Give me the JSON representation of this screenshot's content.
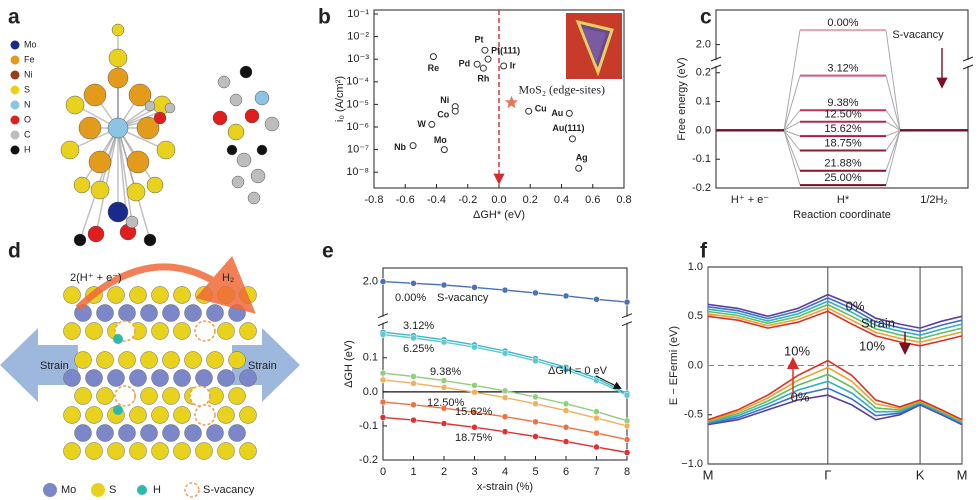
{
  "panel_labels": [
    "a",
    "b",
    "c",
    "d",
    "e",
    "f"
  ],
  "panel_a": {
    "legend": [
      {
        "label": "Mo",
        "color": "#1a2a8a"
      },
      {
        "label": "Fe",
        "color": "#e39b1c"
      },
      {
        "label": "Ni",
        "color": "#9a3b1a"
      },
      {
        "label": "S",
        "color": "#e8d21e"
      },
      {
        "label": "N",
        "color": "#8cc4e4"
      },
      {
        "label": "O",
        "color": "#e01e1e"
      },
      {
        "label": "C",
        "color": "#bdbdbd"
      },
      {
        "label": "H",
        "color": "#111111"
      }
    ]
  },
  "panel_d": {
    "labels": [
      "2(H⁺ + e⁻)",
      "H₂",
      "Strain",
      "Strain"
    ],
    "legend": [
      {
        "label": "Mo",
        "color": "#7b87c9"
      },
      {
        "label": "S",
        "color": "#e8d21e"
      },
      {
        "label": "H",
        "color": "#2fb7b0"
      },
      {
        "label": "S-vacancy",
        "color": "#f0a050"
      }
    ]
  },
  "chart_data": [
    {
      "type": "scatter",
      "ylabel": "i₀ (A/cm²)",
      "xlabel": "ΔGH* (eV)",
      "xlim": [
        -0.8,
        0.8
      ],
      "xticks": [
        -0.8,
        -0.6,
        -0.4,
        -0.2,
        {
          "value": 0,
          "label": "0.0"
        },
        0.2,
        0.4,
        0.6,
        0.8
      ],
      "ylim": [
        2e-09,
        0.15
      ],
      "yscale": "log",
      "yticks": [
        {
          "value": 1e-08,
          "label": "10⁻⁸"
        },
        {
          "value": 1e-07,
          "label": "10⁻⁷"
        },
        {
          "value": 1e-06,
          "label": "10⁻⁶"
        },
        {
          "value": 1e-05,
          "label": "10⁻⁵"
        },
        {
          "value": 0.0001,
          "label": "10⁻⁴"
        },
        {
          "value": 0.001,
          "label": "10⁻³"
        },
        {
          "value": 0.01,
          "label": "10⁻²"
        },
        {
          "value": 0.1,
          "label": "10⁻¹"
        }
      ],
      "point_labels": [
        "Pt",
        "Pt(111)",
        "Pd",
        "Re",
        "Rh",
        "Ir",
        "Ni",
        "Co",
        "W",
        "Mo",
        "Nb",
        "Cu",
        "Au",
        "Au(111)",
        "Ag"
      ],
      "x": [
        -0.09,
        -0.07,
        -0.14,
        -0.42,
        -0.1,
        0.03,
        -0.28,
        -0.28,
        -0.43,
        -0.35,
        -0.55,
        0.19,
        0.45,
        0.47,
        0.51
      ],
      "values": [
        0.0025,
        0.001,
        0.0006,
        0.0013,
        0.0004,
        0.0005,
        8e-06,
        5e-06,
        1.3e-06,
        1e-07,
        1.5e-07,
        5e-06,
        4e-06,
        3e-07,
        1.5e-08
      ],
      "color": "#333333",
      "highlight": {
        "label": "MoS₂ (edge-sites)",
        "x": 0.08,
        "value": 1.2e-05,
        "color": "#e5775c",
        "label_color": "#2a3a9a"
      },
      "vline": {
        "value": 0,
        "color": "#d62b2b"
      }
    },
    {
      "type": "levels",
      "ylabel": "Free energy (eV)",
      "xlabel": "Reaction coordinate",
      "categories": [
        "H⁺ + e⁻",
        "H*",
        "1/2H₂"
      ],
      "ylim": [
        -0.2,
        2.12
      ],
      "ybreak": [
        0.22,
        1.95
      ],
      "yticks": [
        -0.2,
        -0.1,
        {
          "value": 0,
          "label": "0.0"
        },
        0.1,
        0.2,
        {
          "value": 2,
          "label": "2.0"
        }
      ],
      "annotation": "S-vacancy",
      "series": [
        {
          "name": "0.00%",
          "color": "#e7a1b3",
          "values": [
            0,
            2.05,
            0
          ]
        },
        {
          "name": "3.12%",
          "color": "#d9547a",
          "values": [
            0,
            0.19,
            0
          ]
        },
        {
          "name": "9.38%",
          "color": "#c8325d",
          "values": [
            0,
            0.07,
            0
          ]
        },
        {
          "name": "12.50%",
          "color": "#b82849",
          "values": [
            0,
            0.03,
            0
          ]
        },
        {
          "name": "15.62%",
          "color": "#a8203d",
          "values": [
            0,
            -0.02,
            0
          ]
        },
        {
          "name": "18.75%",
          "color": "#951a33",
          "values": [
            0,
            -0.07,
            0
          ]
        },
        {
          "name": "21.88%",
          "color": "#82152a",
          "values": [
            0,
            -0.14,
            0
          ]
        },
        {
          "name": "25.00%",
          "color": "#6e1022",
          "values": [
            0,
            -0.19,
            0
          ]
        }
      ]
    },
    {
      "type": "line",
      "ylabel": "ΔGH (eV)",
      "xlabel": "x-strain (%)",
      "x": [
        0,
        1,
        2,
        3,
        4,
        5,
        6,
        7,
        8
      ],
      "xlim": [
        0,
        8
      ],
      "xticks": [
        0,
        1,
        2,
        3,
        4,
        5,
        6,
        7,
        8
      ],
      "ylim": [
        -0.2,
        2.04
      ],
      "ybreak": [
        0.2,
        1.9
      ],
      "yticks": [
        -0.2,
        -0.1,
        {
          "value": 0,
          "label": "0.0"
        },
        0.1,
        {
          "value": 2,
          "label": "2.0"
        }
      ],
      "zero_line": true,
      "markers": true,
      "annotations": [
        "S-vacancy",
        "ΔGH = 0 eV"
      ],
      "series": [
        {
          "name": "0.00%",
          "color": "#4a72b8",
          "values": [
            2.0,
            1.995,
            1.99,
            1.983,
            1.975,
            1.967,
            1.958,
            1.948,
            1.94
          ]
        },
        {
          "name": "3.12%",
          "color": "#3ab8c8",
          "values": [
            0.175,
            0.165,
            0.153,
            0.138,
            0.12,
            0.098,
            0.072,
            0.04,
            -0.005
          ]
        },
        {
          "name": "6.25%",
          "color": "#5fc9d2",
          "values": [
            0.168,
            0.158,
            0.146,
            0.131,
            0.113,
            0.091,
            0.065,
            0.033,
            -0.01
          ]
        },
        {
          "name": "9.38%",
          "color": "#8fcf7e",
          "values": [
            0.055,
            0.045,
            0.033,
            0.019,
            0.003,
            -0.015,
            -0.035,
            -0.058,
            -0.085
          ]
        },
        {
          "name": "12.50%",
          "color": "#f0b060",
          "values": [
            0.035,
            0.025,
            0.013,
            -0.001,
            -0.017,
            -0.035,
            -0.055,
            -0.077,
            -0.1
          ]
        },
        {
          "name": "15.62%",
          "color": "#f07040",
          "values": [
            -0.03,
            -0.038,
            -0.048,
            -0.06,
            -0.073,
            -0.088,
            -0.104,
            -0.121,
            -0.14
          ]
        },
        {
          "name": "18.75%",
          "color": "#e03030",
          "values": [
            -0.075,
            -0.083,
            -0.093,
            -0.104,
            -0.117,
            -0.131,
            -0.146,
            -0.162,
            -0.178
          ]
        }
      ]
    },
    {
      "type": "line",
      "ylabel": "E − EFermi (eV)",
      "x": [
        0,
        0.25,
        0.5,
        0.75,
        1,
        1.2,
        1.4,
        1.6,
        1.77,
        1.95,
        2.12
      ],
      "xlim": [
        0,
        2.12
      ],
      "xticks": [
        {
          "value": 0,
          "label": "M"
        },
        {
          "value": 1,
          "label": "Γ"
        },
        {
          "value": 1.77,
          "label": "K"
        },
        {
          "value": 2.12,
          "label": "M"
        }
      ],
      "ylim": [
        -1,
        1
      ],
      "yticks": [
        {
          "value": -1,
          "label": "−1.0"
        },
        -0.5,
        {
          "value": 0,
          "label": "0.0"
        },
        0.5,
        {
          "value": 1,
          "label": "1.0"
        }
      ],
      "xgrid": true,
      "dashed_zero": true,
      "annotations": [
        "0%",
        "Strain",
        "10%",
        "10%",
        "0%"
      ],
      "series": [
        {
          "color": "#5b3fa0",
          "values": [
            0.62,
            0.58,
            0.5,
            0.58,
            0.72,
            0.62,
            0.48,
            0.42,
            0.38,
            0.45,
            0.5
          ]
        },
        {
          "color": "#3d6fd0",
          "values": [
            0.596,
            0.556,
            0.476,
            0.552,
            0.686,
            0.58,
            0.444,
            0.384,
            0.344,
            0.41,
            0.46
          ]
        },
        {
          "color": "#2fb0c8",
          "values": [
            0.572,
            0.532,
            0.452,
            0.524,
            0.652,
            0.54,
            0.408,
            0.348,
            0.308,
            0.37,
            0.42
          ]
        },
        {
          "color": "#5cc060",
          "values": [
            0.548,
            0.508,
            0.428,
            0.496,
            0.618,
            0.5,
            0.372,
            0.312,
            0.272,
            0.33,
            0.38
          ]
        },
        {
          "color": "#f0a030",
          "values": [
            0.524,
            0.484,
            0.404,
            0.468,
            0.584,
            0.46,
            0.336,
            0.276,
            0.236,
            0.29,
            0.34
          ]
        },
        {
          "color": "#e0301f",
          "values": [
            0.5,
            0.46,
            0.38,
            0.44,
            0.55,
            0.42,
            0.3,
            0.24,
            0.2,
            0.25,
            0.3
          ]
        },
        {
          "color": "#5b3fa0",
          "values": [
            -0.6,
            -0.55,
            -0.45,
            -0.35,
            -0.3,
            -0.4,
            -0.55,
            -0.5,
            -0.4,
            -0.5,
            -0.6
          ]
        },
        {
          "color": "#3d6fd0",
          "values": [
            -0.59,
            -0.53,
            -0.42,
            -0.3,
            -0.23,
            -0.34,
            -0.51,
            -0.484,
            -0.39,
            -0.49,
            -0.59
          ]
        },
        {
          "color": "#2fb0c8",
          "values": [
            -0.58,
            -0.51,
            -0.39,
            -0.25,
            -0.16,
            -0.28,
            -0.47,
            -0.468,
            -0.38,
            -0.48,
            -0.58
          ]
        },
        {
          "color": "#5cc060",
          "values": [
            -0.57,
            -0.49,
            -0.36,
            -0.2,
            -0.09,
            -0.22,
            -0.43,
            -0.452,
            -0.37,
            -0.47,
            -0.57
          ]
        },
        {
          "color": "#f0a030",
          "values": [
            -0.56,
            -0.47,
            -0.33,
            -0.15,
            -0.02,
            -0.16,
            -0.39,
            -0.436,
            -0.36,
            -0.46,
            -0.56
          ]
        },
        {
          "color": "#e0301f",
          "values": [
            -0.55,
            -0.45,
            -0.3,
            -0.1,
            0.05,
            -0.1,
            -0.35,
            -0.42,
            -0.35,
            -0.45,
            -0.55
          ]
        }
      ]
    }
  ]
}
